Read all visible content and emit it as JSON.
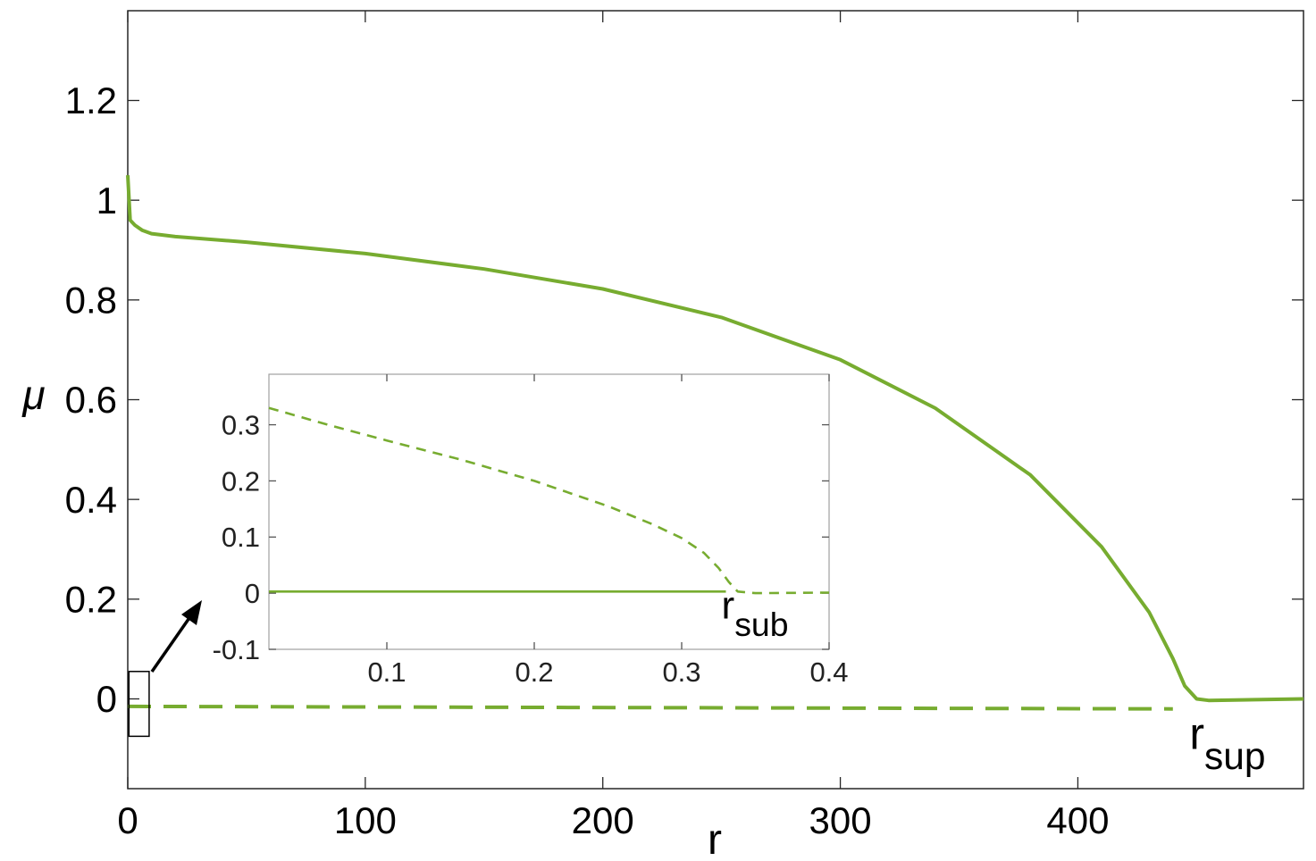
{
  "colors": {
    "series": "#77ac30",
    "axis": "#262626",
    "inset_axis": "#a0a0a0",
    "marker": "#000000"
  },
  "chart_data": [
    {
      "type": "line",
      "title": "",
      "xlabel": "r",
      "ylabel": "μ",
      "xlim": [
        0,
        495
      ],
      "ylim": [
        -0.18,
        1.38
      ],
      "xticks": [
        0,
        100,
        200,
        300,
        400
      ],
      "xtick_labels": [
        "0",
        "100",
        "200",
        "300",
        "400"
      ],
      "yticks": [
        0,
        0.2,
        0.4,
        0.6,
        0.8,
        1,
        1.2
      ],
      "ytick_labels": [
        "0",
        "0.2",
        "0.4",
        "0.6",
        "0.8",
        "1",
        "1.2"
      ],
      "grid": false,
      "series": [
        {
          "style": "solid",
          "x": [
            0,
            1,
            3,
            6,
            10,
            20,
            50,
            100,
            150,
            200,
            250,
            300,
            340,
            380,
            410,
            430,
            440,
            445,
            450,
            455,
            495
          ],
          "y": [
            1.05,
            0.96,
            0.95,
            0.94,
            0.933,
            0.927,
            0.916,
            0.893,
            0.862,
            0.822,
            0.765,
            0.68,
            0.583,
            0.449,
            0.305,
            0.174,
            0.081,
            0.026,
            0,
            -0.003,
            0
          ]
        },
        {
          "style": "dashed",
          "x": [
            0,
            440
          ],
          "y": [
            -0.015,
            -0.02
          ]
        }
      ],
      "annotations": [
        {
          "main": "r",
          "sub": "sup",
          "x": 447,
          "y": -0.1
        }
      ],
      "zoom_box": {
        "x": [
          0.5,
          9
        ],
        "y": [
          -0.075,
          0.055
        ]
      }
    },
    {
      "type": "line",
      "title": "",
      "xlim": [
        0.02,
        0.4
      ],
      "ylim": [
        -0.1,
        0.39
      ],
      "xticks": [
        0.1,
        0.2,
        0.3,
        0.4
      ],
      "xtick_labels": [
        "0.1",
        "0.2",
        "0.3",
        "0.4"
      ],
      "yticks": [
        -0.1,
        0,
        0.1,
        0.2,
        0.3
      ],
      "ytick_labels": [
        "-0.1",
        "0",
        "0.1",
        "0.2",
        "0.3"
      ],
      "grid": false,
      "series": [
        {
          "style": "solid",
          "x": [
            0.02,
            0.33
          ],
          "y": [
            0.003,
            0.003
          ]
        },
        {
          "style": "dashed",
          "x": [
            0.02,
            0.06,
            0.1,
            0.15,
            0.2,
            0.25,
            0.28,
            0.3,
            0.315,
            0.325,
            0.332,
            0.338,
            0.35,
            0.4
          ],
          "y": [
            0.33,
            0.3,
            0.272,
            0.238,
            0.2,
            0.155,
            0.123,
            0.098,
            0.072,
            0.045,
            0.02,
            0.003,
            0,
            0.001
          ]
        }
      ],
      "annotations": [
        {
          "main": "r",
          "sub": "sub",
          "x": 0.327,
          "y": -0.045
        }
      ]
    }
  ]
}
